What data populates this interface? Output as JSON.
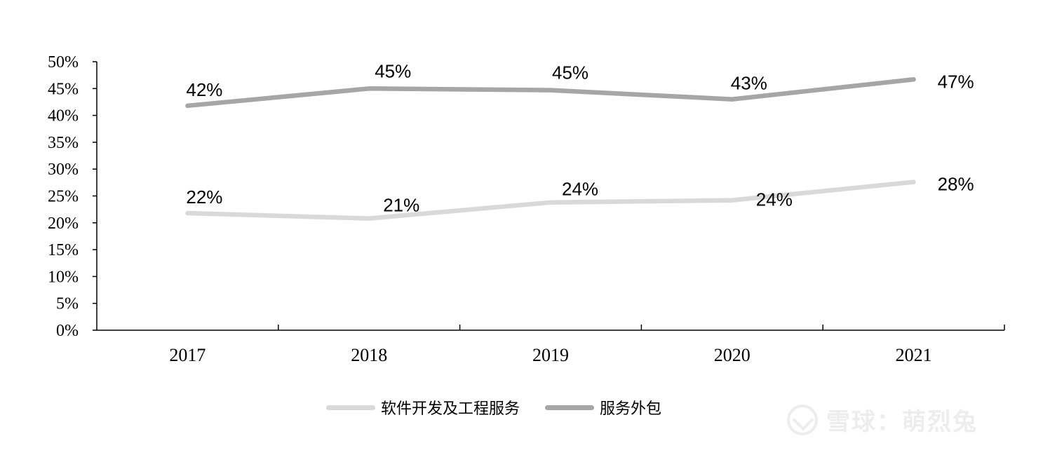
{
  "chart_data": {
    "type": "line",
    "x": [
      "2017",
      "2018",
      "2019",
      "2020",
      "2021"
    ],
    "series": [
      {
        "name": "软件开发及工程服务",
        "values": [
          22,
          21,
          24,
          24,
          28
        ],
        "plot_values": [
          21.8,
          20.8,
          23.8,
          24.2,
          27.6
        ],
        "labels": [
          "22%",
          "21%",
          "24%",
          "24%",
          "28%"
        ],
        "color": "#d9d9d9"
      },
      {
        "name": "服务外包",
        "values": [
          42,
          45,
          45,
          43,
          47
        ],
        "plot_values": [
          41.8,
          45.0,
          44.7,
          43.0,
          46.7
        ],
        "labels": [
          "42%",
          "45%",
          "45%",
          "43%",
          "47%"
        ],
        "color": "#a6a6a6"
      }
    ],
    "yticks": [
      "0%",
      "5%",
      "10%",
      "15%",
      "20%",
      "25%",
      "30%",
      "35%",
      "40%",
      "45%",
      "50%"
    ],
    "ylim": [
      0,
      50
    ],
    "grid": false,
    "legend_position": "bottom"
  },
  "watermark": {
    "text": "雪球：萌烈兔"
  }
}
